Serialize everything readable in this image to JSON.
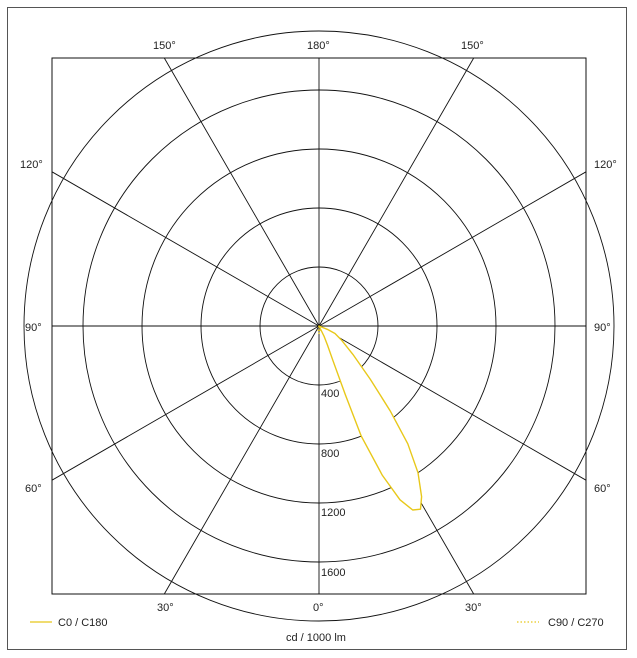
{
  "chart_data": {
    "type": "polar",
    "unit_label": "cd / 1000 lm",
    "radial_ticks": [
      400,
      800,
      1200,
      1600
    ],
    "radial_max": 2000,
    "angle_labels": {
      "top": [
        "150°",
        "180°",
        "150°"
      ],
      "left": [
        "120°",
        "90°",
        "60°"
      ],
      "right": [
        "120°",
        "90°",
        "60°"
      ],
      "bottom": [
        "30°",
        "0°",
        "30°"
      ]
    },
    "series": [
      {
        "name": "C0 / C180",
        "color": "#e8c81a",
        "style": "solid",
        "points": [
          {
            "angle": -26,
            "value": 80
          },
          {
            "angle": -24,
            "value": 140
          },
          {
            "angle": -22,
            "value": 250
          },
          {
            "angle": -21,
            "value": 500
          },
          {
            "angle": -21,
            "value": 800
          },
          {
            "angle": -23,
            "value": 1100
          },
          {
            "angle": -25,
            "value": 1300
          },
          {
            "angle": -27,
            "value": 1400
          },
          {
            "angle": -29,
            "value": 1420
          },
          {
            "angle": -31,
            "value": 1350
          },
          {
            "angle": -34,
            "value": 1200
          },
          {
            "angle": -37,
            "value": 1000
          },
          {
            "angle": -40,
            "value": 750
          },
          {
            "angle": -44,
            "value": 500
          },
          {
            "angle": -50,
            "value": 300
          },
          {
            "angle": -58,
            "value": 180
          },
          {
            "angle": -65,
            "value": 120
          },
          {
            "angle": -68,
            "value": 60
          }
        ]
      },
      {
        "name": "C90 / C270",
        "color": "#e8c81a",
        "style": "dotted",
        "points": [
          {
            "angle": -10,
            "value": 40
          },
          {
            "angle": 0,
            "value": 50
          },
          {
            "angle": 10,
            "value": 40
          }
        ]
      }
    ]
  }
}
